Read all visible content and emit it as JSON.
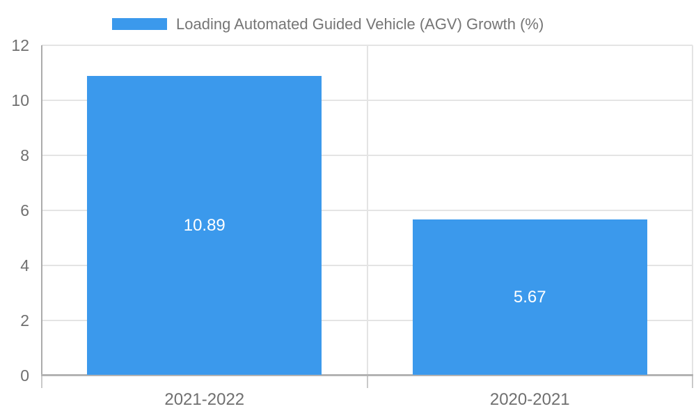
{
  "chart_data": {
    "type": "bar",
    "title": "",
    "series": [
      {
        "name": "Loading Automated Guided Vehicle (AGV) Growth (%)",
        "values": [
          10.89,
          5.67
        ],
        "value_labels": [
          "10.89",
          "5.67"
        ]
      }
    ],
    "categories": [
      "2021-2022",
      "2020-2021"
    ],
    "xlabel": "",
    "ylabel": "",
    "ylim": [
      0,
      12
    ],
    "yticks": [
      0,
      2,
      4,
      6,
      8,
      10,
      12
    ],
    "ytick_labels": [
      "0",
      "2",
      "4",
      "6",
      "8",
      "10",
      "12"
    ],
    "grid": true,
    "legend_position": "top-center"
  },
  "colors": {
    "bar": "#3B99EC",
    "grid": "#E4E4E4",
    "axis": "#B3B3B3",
    "axis_left": "#ABABAB",
    "tick_stub": "#C9C9C9",
    "tick_text": "#6F6F6F",
    "legend_text": "#757575",
    "value_label": "#FFFFFF",
    "background": "#FFFFFF"
  }
}
